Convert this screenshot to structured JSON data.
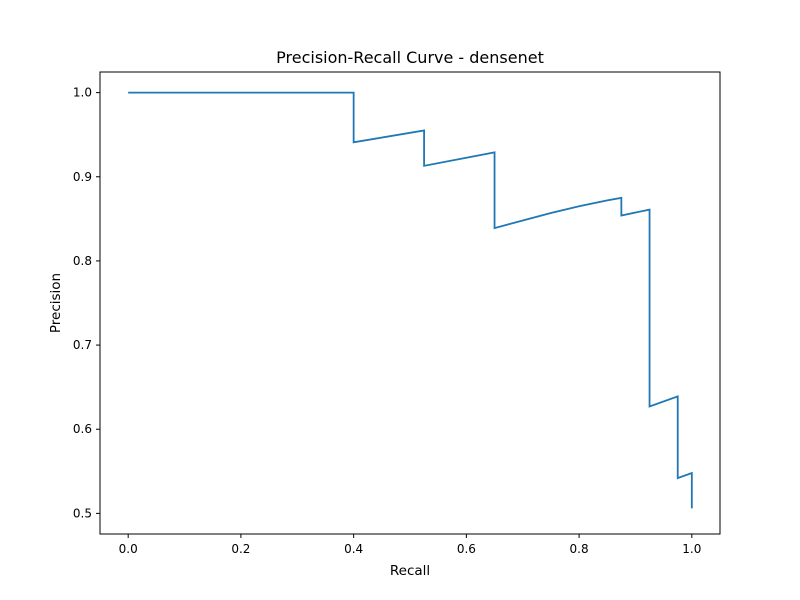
{
  "chart_data": {
    "type": "line",
    "title": "Precision-Recall Curve - densenet",
    "xlabel": "Recall",
    "ylabel": "Precision",
    "xlim": [
      -0.05,
      1.05
    ],
    "ylim": [
      0.4755,
      1.0245
    ],
    "grid": false,
    "legend": "none",
    "x_ticks": [
      0.0,
      0.2,
      0.4,
      0.6,
      0.8,
      1.0
    ],
    "x_tick_labels": [
      "0.0",
      "0.2",
      "0.4",
      "0.6",
      "0.8",
      "1.0"
    ],
    "y_ticks": [
      0.5,
      0.6,
      0.7,
      0.8,
      0.9,
      1.0
    ],
    "y_tick_labels": [
      "0.5",
      "0.6",
      "0.7",
      "0.8",
      "0.9",
      "1.0"
    ],
    "series": [
      {
        "color": "#1f77b4",
        "x": [
          0.0,
          0.4,
          0.4,
          0.525,
          0.525,
          0.65,
          0.65,
          0.7,
          0.75,
          0.8,
          0.85,
          0.875,
          0.875,
          0.925,
          0.925,
          0.975,
          0.975,
          1.0,
          1.0
        ],
        "y": [
          1.0,
          1.0,
          0.941,
          0.955,
          0.913,
          0.929,
          0.839,
          0.848,
          0.857,
          0.865,
          0.872,
          0.875,
          0.854,
          0.861,
          0.627,
          0.639,
          0.542,
          0.548,
          0.506
        ]
      }
    ]
  }
}
